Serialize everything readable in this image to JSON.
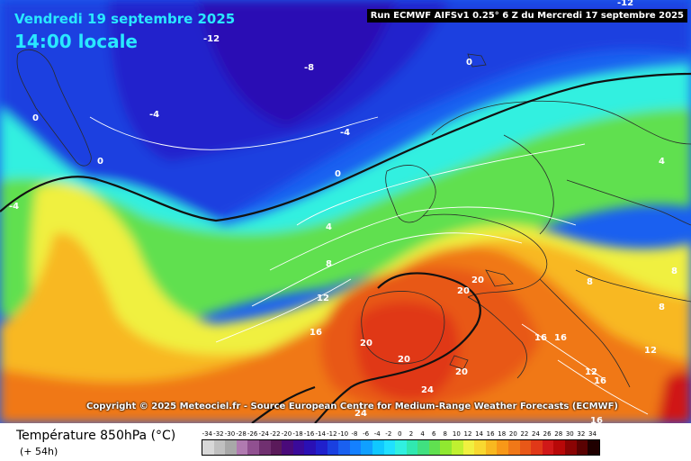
{
  "header": {
    "date": "Vendredi 19 septembre 2025",
    "time": "14:00 locale",
    "run": "Run ECMWF AIFSv1 0.25° 6 Z du Mercredi 17 septembre 2025"
  },
  "copyright": "Copyright © 2025 Meteociel.fr - Source European Centre for Medium-Range Weather Forecasts (ECMWF)",
  "legend": {
    "title": "Température 850hPa (°C)",
    "subtitle": "(+ 54h)",
    "ticks": [
      "-34",
      "-32",
      "-30",
      "-28",
      "-26",
      "-24",
      "-22",
      "-20",
      "-18",
      "-16",
      "-14",
      "-12",
      "-10",
      "-8",
      "-6",
      "-4",
      "-2",
      "0",
      "2",
      "4",
      "6",
      "8",
      "10",
      "12",
      "14",
      "16",
      "18",
      "20",
      "22",
      "24",
      "26",
      "28",
      "30",
      "32",
      "34"
    ],
    "colors": [
      "#d8d8d8",
      "#c0c0c0",
      "#a8a8a8",
      "#b07ab0",
      "#905090",
      "#703070",
      "#5a1a5a",
      "#4a0a7a",
      "#3a0a9a",
      "#2a10b4",
      "#2020cc",
      "#1a40e0",
      "#1a60f0",
      "#1480ff",
      "#10a0ff",
      "#10c8ff",
      "#20e0ff",
      "#30f0e0",
      "#30e8b0",
      "#40e080",
      "#60e050",
      "#90e830",
      "#c0f030",
      "#f0f040",
      "#f8d830",
      "#f8b820",
      "#f89818",
      "#f07818",
      "#e85818",
      "#e03818",
      "#d01818",
      "#b80808",
      "#8a0404",
      "#5a0202",
      "#200000"
    ]
  },
  "contour_labels": [
    {
      "text": "-12"
    },
    {
      "text": "-8"
    },
    {
      "text": "-4"
    },
    {
      "text": "-4"
    },
    {
      "text": "0"
    },
    {
      "text": "0"
    },
    {
      "text": "0"
    },
    {
      "text": "0"
    },
    {
      "text": "-12"
    },
    {
      "text": "-4"
    },
    {
      "text": "4"
    },
    {
      "text": "8"
    },
    {
      "text": "12"
    },
    {
      "text": "16"
    },
    {
      "text": "20"
    },
    {
      "text": "20"
    },
    {
      "text": "20"
    },
    {
      "text": "20"
    },
    {
      "text": "24"
    },
    {
      "text": "24"
    },
    {
      "text": "16"
    },
    {
      "text": "16"
    },
    {
      "text": "12"
    },
    {
      "text": "12"
    },
    {
      "text": "8"
    },
    {
      "text": "8"
    },
    {
      "text": "8"
    },
    {
      "text": "4"
    },
    {
      "text": "16"
    },
    {
      "text": "20"
    },
    {
      "text": "16"
    }
  ]
}
